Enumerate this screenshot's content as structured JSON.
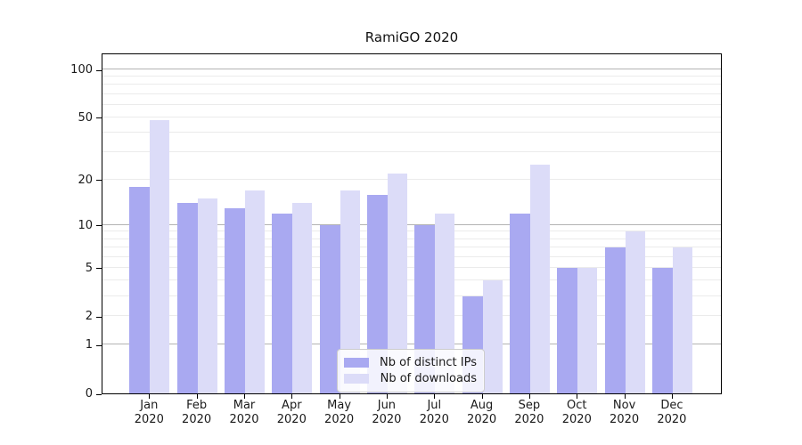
{
  "chart_data": {
    "type": "bar",
    "title": "RamiGO 2020",
    "categories": [
      "Jan 2020",
      "Feb 2020",
      "Mar 2020",
      "Apr 2020",
      "May 2020",
      "Jun 2020",
      "Jul 2020",
      "Aug 2020",
      "Sep 2020",
      "Oct 2020",
      "Nov 2020",
      "Dec 2020"
    ],
    "series": [
      {
        "name": "Nb of distinct IPs",
        "color": "#a9a9f1",
        "values": [
          18,
          14,
          13,
          12,
          10,
          16,
          10,
          3,
          12,
          5,
          7,
          5
        ]
      },
      {
        "name": "Nb of downloads",
        "color": "#dcdcf8",
        "values": [
          48,
          15,
          17,
          14,
          17,
          22,
          12,
          4,
          25,
          5,
          9,
          7
        ]
      }
    ],
    "xlabel": "",
    "ylabel": "",
    "y_axis": {
      "scale": "log1p",
      "tick_values": [
        0,
        1,
        2,
        5,
        10,
        20,
        50,
        100
      ],
      "tick_labels": [
        "0",
        "1",
        "2",
        "5",
        "10",
        "20",
        "50",
        "100"
      ],
      "major_gridlines": [
        1,
        10,
        100
      ],
      "minor_gridlines": [
        2,
        3,
        4,
        5,
        6,
        7,
        8,
        9,
        20,
        30,
        40,
        50,
        60,
        70,
        80,
        90
      ],
      "ylim": [
        0,
        127
      ]
    },
    "legend": {
      "position": "bottom-center",
      "entries": [
        "Nb of distinct IPs",
        "Nb of downloads"
      ]
    },
    "grid": true
  },
  "colors": {
    "series1": "#a9a9f1",
    "series2": "#dcdcf8",
    "major_grid": "#b3b3b3",
    "minor_grid": "#ebebeb",
    "spine": "#000000",
    "text": "#1a1a1a"
  }
}
